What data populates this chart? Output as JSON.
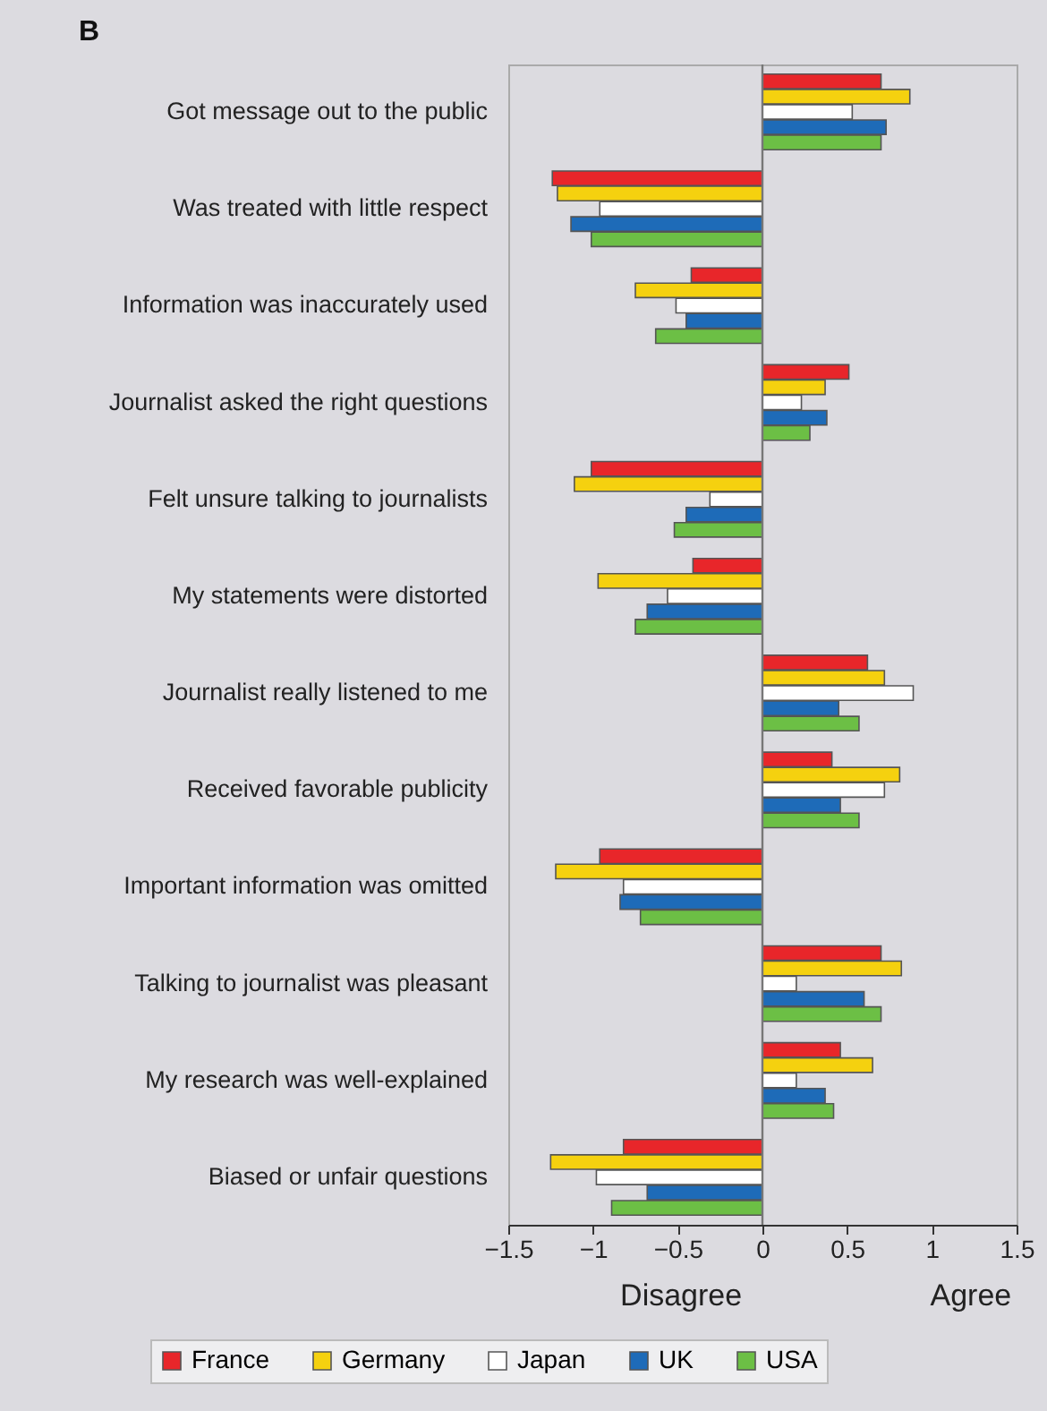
{
  "chart_data": {
    "type": "bar",
    "orientation": "horizontal",
    "title": "B",
    "categories": [
      "Got message out to the public",
      "Was treated with little respect",
      "Information was inaccurately used",
      "Journalist asked the right questions",
      "Felt unsure talking to journalists",
      "My statements were distorted",
      "Journalist really listened to me",
      "Received favorable publicity",
      "Important information was omitted",
      "Talking to journalist was pleasant",
      "My research was well-explained",
      "Biased or unfair questions"
    ],
    "series": [
      {
        "name": "France",
        "color": "#e8262a",
        "values": [
          0.7,
          -1.24,
          -0.42,
          0.51,
          -1.01,
          -0.41,
          0.62,
          0.41,
          -0.96,
          0.7,
          0.46,
          -0.82
        ]
      },
      {
        "name": "Germany",
        "color": "#f5d10f",
        "values": [
          0.87,
          -1.21,
          -0.75,
          0.37,
          -1.11,
          -0.97,
          0.72,
          0.81,
          -1.22,
          0.82,
          0.65,
          -1.25
        ]
      },
      {
        "name": "Japan",
        "color": "#ffffff",
        "values": [
          0.53,
          -0.96,
          -0.51,
          0.23,
          -0.31,
          -0.56,
          0.89,
          0.72,
          -0.82,
          0.2,
          0.2,
          -0.98
        ]
      },
      {
        "name": "UK",
        "color": "#1e6bb8",
        "values": [
          0.73,
          -1.13,
          -0.45,
          0.38,
          -0.45,
          -0.68,
          0.45,
          0.46,
          -0.84,
          0.6,
          0.37,
          -0.68
        ]
      },
      {
        "name": "USA",
        "color": "#6cbf45",
        "values": [
          0.7,
          -1.01,
          -0.63,
          0.28,
          -0.52,
          -0.75,
          0.57,
          0.57,
          -0.72,
          0.7,
          0.42,
          -0.89
        ]
      }
    ],
    "xlim": [
      -1.5,
      1.5
    ],
    "xticks": [
      -1.5,
      -1,
      -0.5,
      0,
      0.5,
      1,
      1.5
    ],
    "ref_lines": [
      {
        "axis": "x",
        "value": 0,
        "color": "#777777"
      }
    ],
    "annotations": [
      "Disagree",
      "Agree"
    ],
    "grid": false,
    "legend": "bottom"
  }
}
